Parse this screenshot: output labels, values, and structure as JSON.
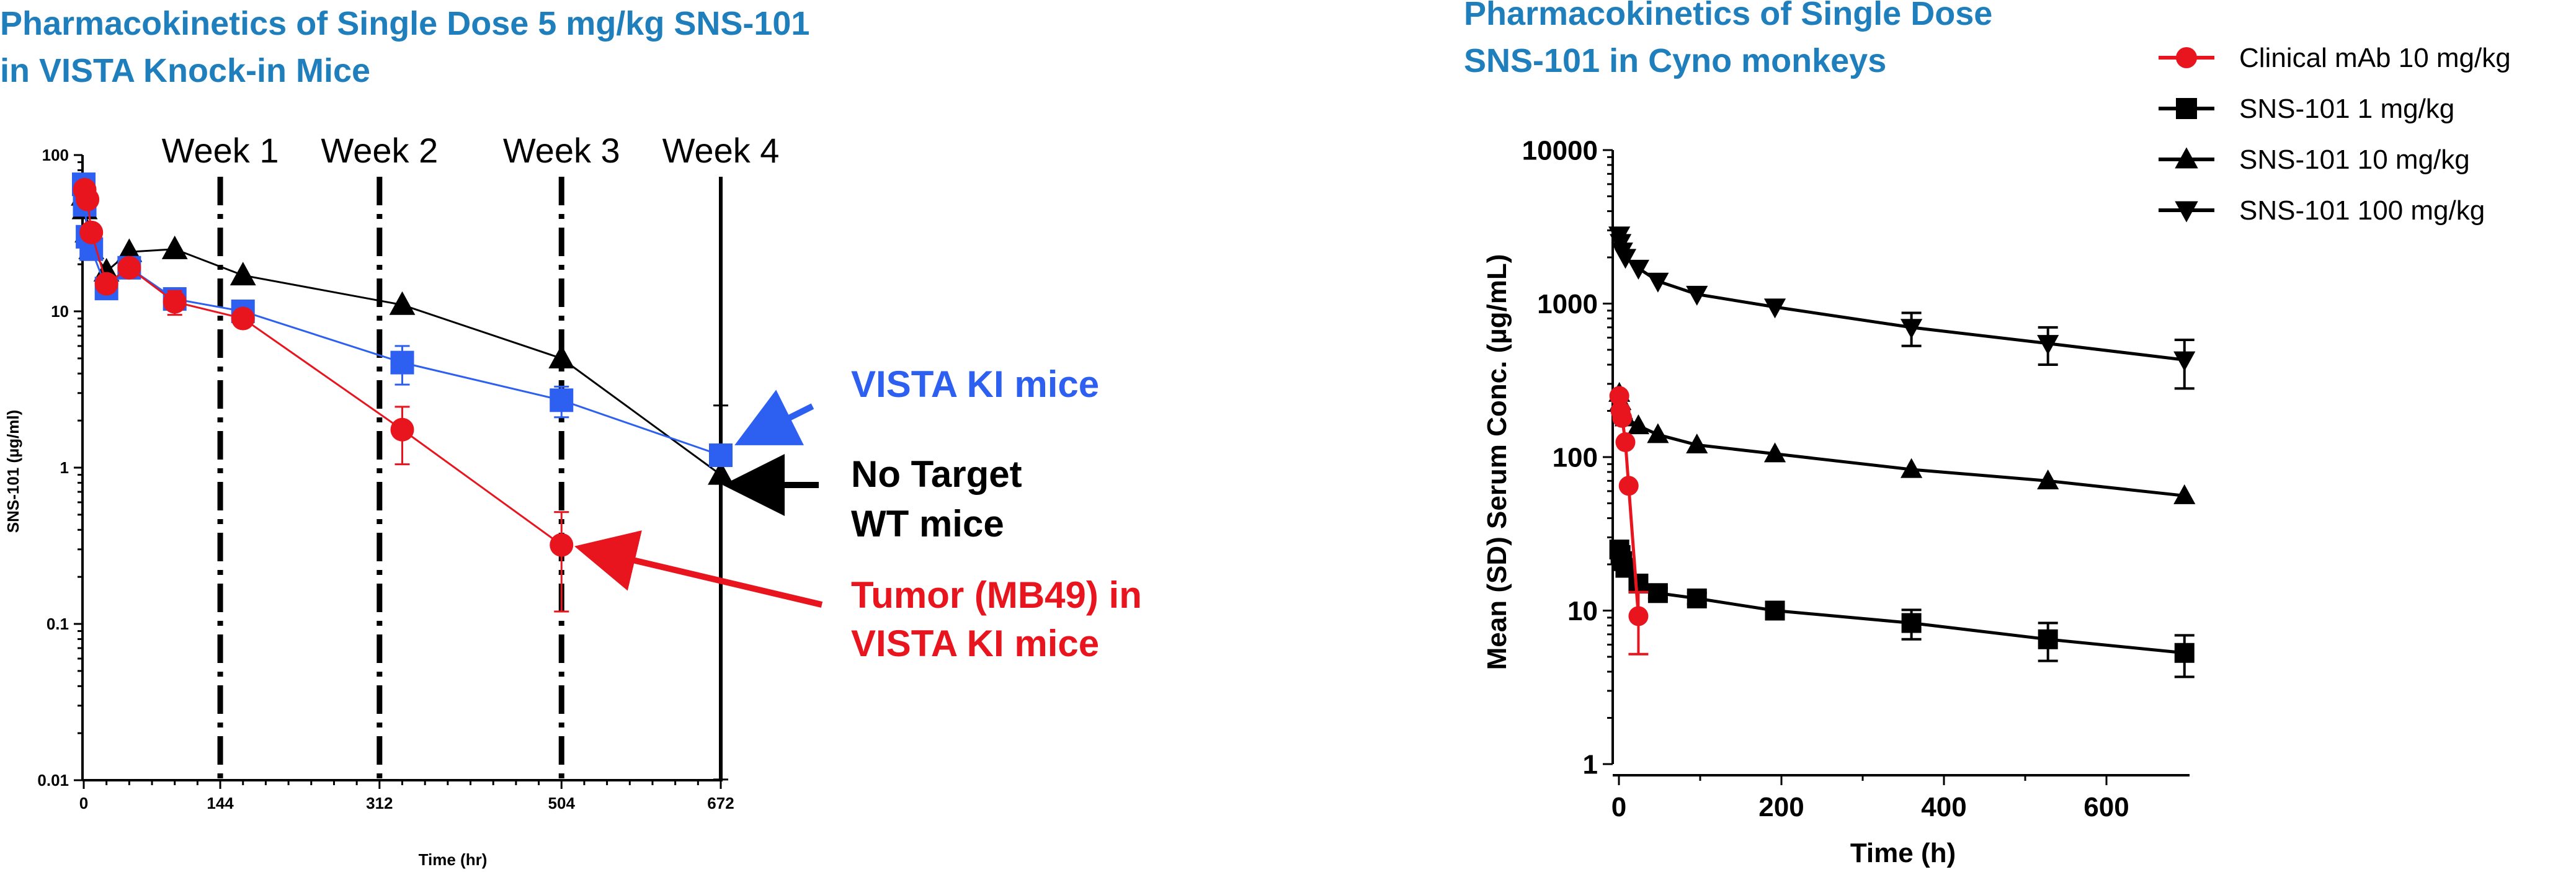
{
  "chart_data": [
    {
      "type": "line",
      "title": "Pharmacokinetics of Single Dose 5 mg/kg SNS-101 in VISTA Knock-in Mice",
      "title_lines": [
        "Pharmacokinetics of Single Dose 5 mg/kg SNS-101",
        "in VISTA Knock-in Mice"
      ],
      "xlabel": "Time (hr)",
      "ylabel": "SNS-101 (µg/ml)",
      "xlim": [
        0,
        672
      ],
      "ylim": [
        0.01,
        100
      ],
      "yscale": "log",
      "x_ticks": [
        0,
        144,
        312,
        504,
        672
      ],
      "y_ticks": [
        100,
        10,
        1,
        0.1,
        0.01
      ],
      "y_tick_labels": [
        "100",
        "10",
        "1",
        "0.1",
        "0.01"
      ],
      "week_markers": [
        {
          "label": "Week 1",
          "x": 144
        },
        {
          "label": "Week 2",
          "x": 312
        },
        {
          "label": "Week 3",
          "x": 504
        },
        {
          "label": "Week 4",
          "x": 672
        }
      ],
      "series": [
        {
          "name": "No Target WT mice",
          "color": "#000000",
          "marker": "triangle",
          "x": [
            0,
            1,
            4,
            8,
            24,
            48,
            96,
            168,
            336,
            504,
            672
          ],
          "y": [
            55,
            45,
            32,
            25,
            18,
            24,
            25,
            17,
            11,
            5,
            0.9
          ],
          "err": [
            0,
            0,
            0,
            0,
            0,
            0,
            0,
            0,
            0,
            0,
            1.6
          ]
        },
        {
          "name": "VISTA KI mice",
          "color": "#2d5ff0",
          "marker": "square",
          "x": [
            0,
            1,
            4,
            8,
            24,
            48,
            96,
            168,
            336,
            504,
            672
          ],
          "y": [
            65,
            48,
            30,
            25,
            14,
            19,
            12,
            10,
            4.7,
            2.7,
            1.2
          ],
          "err": [
            0,
            0,
            0,
            0,
            0,
            0,
            0,
            0,
            1.3,
            0.6,
            0
          ]
        },
        {
          "name": "Tumor (MB49) in VISTA KI mice",
          "color": "#e8141e",
          "marker": "circle",
          "x": [
            1,
            4,
            8,
            24,
            48,
            96,
            168,
            336,
            504
          ],
          "y": [
            60,
            52,
            32,
            15,
            19,
            11.5,
            9,
            1.75,
            0.32
          ],
          "err": [
            0,
            0,
            0,
            0,
            0,
            2,
            0,
            0.7,
            0.2
          ]
        }
      ],
      "annotations": [
        {
          "text": "VISTA KI mice",
          "color": "#2d5ff0"
        },
        {
          "text": "No Target",
          "text2": "WT mice",
          "color": "#000000"
        },
        {
          "text": "Tumor (MB49) in",
          "text2": "VISTA KI mice",
          "color": "#e8141e"
        }
      ]
    },
    {
      "type": "line",
      "title": "Pharmacokinetics of Single Dose SNS-101 in Cyno monkeys",
      "title_lines": [
        "Pharmacokinetics of Single Dose",
        "SNS-101 in Cyno monkeys"
      ],
      "xlabel": "Time (h)",
      "ylabel": "Mean (SD) Serum Conc. (µg/mL)",
      "xlim": [
        0,
        700
      ],
      "ylim": [
        1,
        10000
      ],
      "yscale": "log",
      "x_ticks": [
        0,
        200,
        400,
        600
      ],
      "y_ticks": [
        10000,
        1000,
        100,
        10,
        1
      ],
      "y_tick_labels": [
        "10000",
        "1000",
        "100",
        "10",
        "1"
      ],
      "legend_position": "top-right",
      "series": [
        {
          "name": "SNS-101 1 mg/kg",
          "color": "#000000",
          "marker": "square",
          "x": [
            0.5,
            2,
            4,
            8,
            24,
            48,
            96,
            192,
            360,
            528,
            696
          ],
          "y": [
            25,
            23,
            21,
            19,
            15,
            13,
            12,
            10,
            8.3,
            6.5,
            5.3
          ],
          "err": [
            0,
            0,
            0,
            0,
            0,
            1,
            1,
            0.8,
            1.8,
            1.8,
            1.6
          ]
        },
        {
          "name": "SNS-101 10 mg/kg",
          "color": "#000000",
          "marker": "triangle",
          "x": [
            0.5,
            2,
            4,
            8,
            24,
            48,
            96,
            192,
            360,
            528,
            696
          ],
          "y": [
            260,
            230,
            200,
            180,
            160,
            140,
            120,
            105,
            83,
            70,
            56
          ],
          "err": [
            0,
            0,
            0,
            0,
            0,
            0,
            0,
            0,
            0,
            0,
            0
          ]
        },
        {
          "name": "SNS-101 100 mg/kg",
          "color": "#000000",
          "marker": "triangle-down",
          "x": [
            0.5,
            2,
            4,
            8,
            24,
            48,
            96,
            192,
            360,
            528,
            696
          ],
          "y": [
            2800,
            2500,
            2200,
            2000,
            1700,
            1400,
            1150,
            950,
            700,
            550,
            430
          ],
          "err": [
            0,
            0,
            0,
            0,
            0,
            0,
            0,
            0,
            170,
            150,
            150
          ]
        },
        {
          "name": "Clinical mAb 10 mg/kg",
          "color": "#e8141e",
          "marker": "circle",
          "x": [
            0.5,
            2,
            4,
            8,
            12,
            24
          ],
          "y": [
            250,
            200,
            180,
            125,
            65,
            9.2
          ],
          "err": [
            0,
            0,
            0,
            0,
            0,
            4
          ]
        }
      ]
    }
  ]
}
